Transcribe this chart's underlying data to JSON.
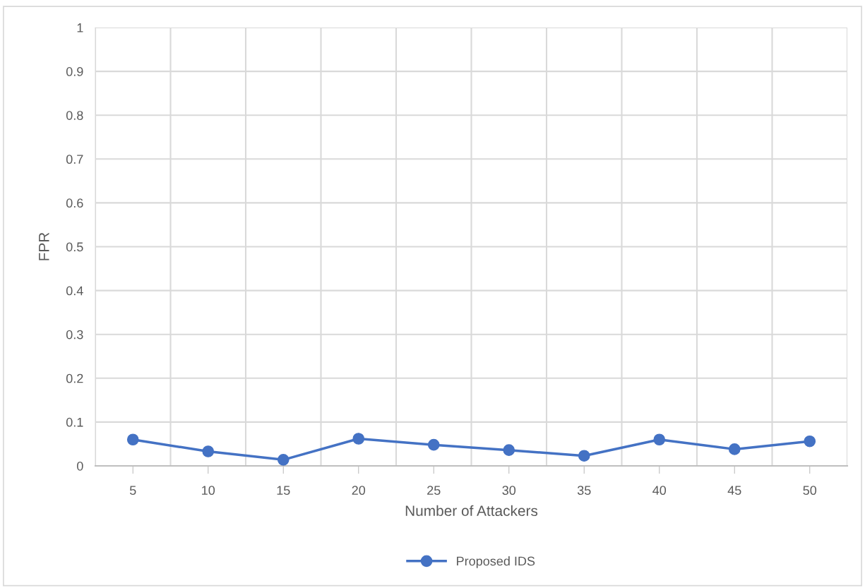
{
  "chart_data": {
    "type": "line",
    "xlabel": "Number of Attackers",
    "ylabel": "FPR",
    "categories": [
      "5",
      "10",
      "15",
      "20",
      "25",
      "30",
      "35",
      "40",
      "45",
      "50"
    ],
    "series": [
      {
        "name": "Proposed IDS",
        "color": "#4472c4",
        "values": [
          0.06,
          0.033,
          0.014,
          0.062,
          0.048,
          0.036,
          0.023,
          0.06,
          0.038,
          0.056
        ]
      }
    ],
    "ylim": [
      0,
      1
    ],
    "yticks": [
      0,
      0.1,
      0.2,
      0.3,
      0.4,
      0.5,
      0.6,
      0.7,
      0.8,
      0.9,
      1
    ],
    "grid": true,
    "legend": "bottom",
    "marker": "circle",
    "line_style": "solid"
  }
}
